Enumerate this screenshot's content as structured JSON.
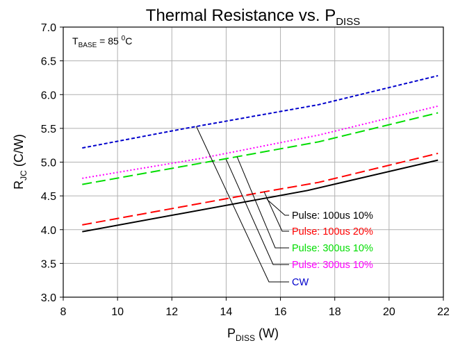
{
  "chart_data": {
    "type": "line",
    "title": {
      "main": "Thermal Resistance vs. P",
      "sub": "DISS"
    },
    "xlabel": {
      "main": "P",
      "sub": "DISS",
      "rest": " (W)"
    },
    "ylabel": {
      "main": "R",
      "sub": "JC",
      "rest": " (C/W)"
    },
    "annotation": {
      "main": "T",
      "sub": "BASE",
      "rest": " = 85 ",
      "sup": "0",
      "tail": "C"
    },
    "xlim": [
      8,
      22
    ],
    "ylim": [
      3.0,
      7.0
    ],
    "x_ticks": [
      "8",
      "10",
      "12",
      "14",
      "16",
      "18",
      "20",
      "22"
    ],
    "y_ticks": [
      "3.0",
      "3.5",
      "4.0",
      "4.5",
      "5.0",
      "5.5",
      "6.0",
      "6.5",
      "7.0"
    ],
    "grid": true,
    "series": [
      {
        "name": "CW",
        "color": "#0000cc",
        "dash": "short-dash",
        "points": [
          [
            8.7,
            5.21
          ],
          [
            12.5,
            5.5
          ],
          [
            17.4,
            5.85
          ],
          [
            21.8,
            6.28
          ]
        ]
      },
      {
        "name": "Pulse: 300us 10%",
        "color": "#ff00ff",
        "dash": "dot",
        "points": [
          [
            8.7,
            4.76
          ],
          [
            13.0,
            5.05
          ],
          [
            17.4,
            5.4
          ],
          [
            21.8,
            5.83
          ]
        ]
      },
      {
        "name": "Pulse: 300us 10%",
        "color": "#00dd00",
        "dash": "long-dash",
        "points": [
          [
            8.7,
            4.67
          ],
          [
            14.4,
            5.08
          ],
          [
            17.4,
            5.3
          ],
          [
            21.8,
            5.73
          ]
        ]
      },
      {
        "name": "Pulse: 100us 20%",
        "color": "#ff0000",
        "dash": "long-dash",
        "points": [
          [
            8.7,
            4.07
          ],
          [
            15.4,
            4.56
          ],
          [
            17.4,
            4.7
          ],
          [
            21.8,
            5.13
          ]
        ]
      },
      {
        "name": "Pulse: 100us 10%",
        "color": "#000000",
        "dash": "solid",
        "points": [
          [
            8.7,
            3.97
          ],
          [
            17.0,
            4.58
          ],
          [
            21.8,
            5.03
          ]
        ]
      }
    ],
    "legend_callouts": [
      {
        "label": "Pulse: 100us 10%",
        "color": "#000000",
        "anchor": [
          15.5,
          4.45
        ]
      },
      {
        "label": "Pulse: 100us 20%",
        "color": "#ff0000",
        "anchor": [
          15.4,
          4.56
        ]
      },
      {
        "label": "Pulse: 300us 10%",
        "color": "#00dd00",
        "anchor": [
          14.4,
          5.08
        ]
      },
      {
        "label": "Pulse: 300us 10%",
        "color": "#ff00ff",
        "anchor": [
          14.0,
          5.04
        ]
      },
      {
        "label": "CW",
        "color": "#0000cc",
        "anchor": [
          12.9,
          5.53
        ]
      }
    ]
  }
}
